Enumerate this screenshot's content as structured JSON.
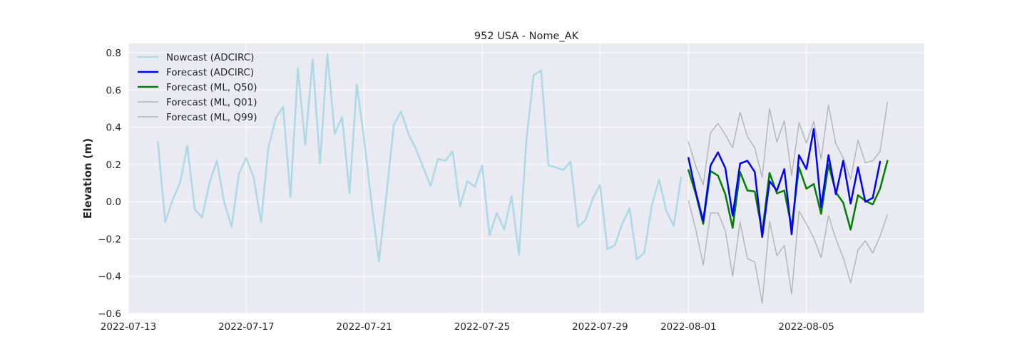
{
  "chart_data": {
    "type": "line",
    "title": "952 USA - Nome_AK",
    "xlabel": "",
    "ylabel": "Elevation (m)",
    "ylim": [
      -0.6,
      0.85
    ],
    "xlim": [
      "2022-07-13 00:00",
      "2022-08-09 00:00"
    ],
    "yticks": [
      "0.8",
      "0.6",
      "0.4",
      "0.2",
      "0.0",
      "−0.2",
      "−0.4",
      "−0.6"
    ],
    "xticks": [
      "2022-07-13",
      "2022-07-17",
      "2022-07-21",
      "2022-07-25",
      "2022-07-29",
      "2022-08-01",
      "2022-08-05"
    ],
    "grid": true,
    "legend_position": "top-left",
    "colors": {
      "background": "#eaeaf2",
      "grid": "#ffffff",
      "nowcast": "#add8e6",
      "forecast_adcirc": "#0000ff",
      "forecast_q50": "#008000",
      "forecast_q01": "#b3b3b3",
      "forecast_q99": "#b3b3b3"
    },
    "series": [
      {
        "name": "Nowcast (ADCIRC)",
        "key": "nowcast",
        "width": 2.5,
        "points": [
          [
            "2022-07-14 00:00",
            0.32
          ],
          [
            "2022-07-14 06:00",
            -0.11
          ],
          [
            "2022-07-14 12:00",
            0.01
          ],
          [
            "2022-07-14 18:00",
            0.1
          ],
          [
            "2022-07-15 00:00",
            0.3
          ],
          [
            "2022-07-15 06:00",
            -0.04
          ],
          [
            "2022-07-15 12:00",
            -0.085
          ],
          [
            "2022-07-15 18:00",
            0.1
          ],
          [
            "2022-07-16 00:00",
            0.22
          ],
          [
            "2022-07-16 06:00",
            0.0
          ],
          [
            "2022-07-16 12:00",
            -0.135
          ],
          [
            "2022-07-16 18:00",
            0.15
          ],
          [
            "2022-07-17 00:00",
            0.235
          ],
          [
            "2022-07-17 06:00",
            0.13
          ],
          [
            "2022-07-17 12:00",
            -0.11
          ],
          [
            "2022-07-17 18:00",
            0.29
          ],
          [
            "2022-07-18 00:00",
            0.45
          ],
          [
            "2022-07-18 06:00",
            0.51
          ],
          [
            "2022-07-18 12:00",
            0.025
          ],
          [
            "2022-07-18 18:00",
            0.715
          ],
          [
            "2022-07-19 00:00",
            0.305
          ],
          [
            "2022-07-19 06:00",
            0.765
          ],
          [
            "2022-07-19 12:00",
            0.205
          ],
          [
            "2022-07-19 18:00",
            0.795
          ],
          [
            "2022-07-20 00:00",
            0.365
          ],
          [
            "2022-07-20 06:00",
            0.455
          ],
          [
            "2022-07-20 12:00",
            0.045
          ],
          [
            "2022-07-20 18:00",
            0.63
          ],
          [
            "2022-07-21 00:00",
            0.33
          ],
          [
            "2022-07-21 06:00",
            -0.01
          ],
          [
            "2022-07-21 12:00",
            -0.32
          ],
          [
            "2022-07-21 18:00",
            0.03
          ],
          [
            "2022-07-22 00:00",
            0.41
          ],
          [
            "2022-07-22 06:00",
            0.485
          ],
          [
            "2022-07-22 12:00",
            0.365
          ],
          [
            "2022-07-22 18:00",
            0.285
          ],
          [
            "2022-07-23 00:00",
            0.185
          ],
          [
            "2022-07-23 06:00",
            0.085
          ],
          [
            "2022-07-23 12:00",
            0.23
          ],
          [
            "2022-07-23 18:00",
            0.22
          ],
          [
            "2022-07-24 00:00",
            0.27
          ],
          [
            "2022-07-24 06:00",
            -0.025
          ],
          [
            "2022-07-24 12:00",
            0.11
          ],
          [
            "2022-07-24 18:00",
            0.08
          ],
          [
            "2022-07-25 00:00",
            0.195
          ],
          [
            "2022-07-25 06:00",
            -0.18
          ],
          [
            "2022-07-25 12:00",
            -0.06
          ],
          [
            "2022-07-25 18:00",
            -0.15
          ],
          [
            "2022-07-26 00:00",
            0.03
          ],
          [
            "2022-07-26 06:00",
            -0.285
          ],
          [
            "2022-07-26 12:00",
            0.33
          ],
          [
            "2022-07-26 18:00",
            0.68
          ],
          [
            "2022-07-27 00:00",
            0.705
          ],
          [
            "2022-07-27 06:00",
            0.195
          ],
          [
            "2022-07-27 12:00",
            0.185
          ],
          [
            "2022-07-27 18:00",
            0.17
          ],
          [
            "2022-07-28 00:00",
            0.215
          ],
          [
            "2022-07-28 06:00",
            -0.135
          ],
          [
            "2022-07-28 12:00",
            -0.1
          ],
          [
            "2022-07-28 18:00",
            0.015
          ],
          [
            "2022-07-29 00:00",
            0.09
          ],
          [
            "2022-07-29 06:00",
            -0.255
          ],
          [
            "2022-07-29 12:00",
            -0.235
          ],
          [
            "2022-07-29 18:00",
            -0.12
          ],
          [
            "2022-07-30 00:00",
            -0.035
          ],
          [
            "2022-07-30 06:00",
            -0.31
          ],
          [
            "2022-07-30 12:00",
            -0.275
          ],
          [
            "2022-07-30 18:00",
            -0.025
          ],
          [
            "2022-07-31 00:00",
            0.12
          ],
          [
            "2022-07-31 06:00",
            -0.05
          ],
          [
            "2022-07-31 12:00",
            -0.13
          ],
          [
            "2022-07-31 18:00",
            0.13
          ]
        ]
      },
      {
        "name": "Forecast (ADCIRC)",
        "key": "forecast_adcirc",
        "width": 2.5,
        "points": [
          [
            "2022-08-01 00:00",
            0.235
          ],
          [
            "2022-08-01 06:00",
            0.05
          ],
          [
            "2022-08-01 12:00",
            -0.105
          ],
          [
            "2022-08-01 18:00",
            0.195
          ],
          [
            "2022-08-02 00:00",
            0.265
          ],
          [
            "2022-08-02 06:00",
            0.18
          ],
          [
            "2022-08-02 12:00",
            -0.075
          ],
          [
            "2022-08-02 18:00",
            0.205
          ],
          [
            "2022-08-03 00:00",
            0.22
          ],
          [
            "2022-08-03 06:00",
            0.16
          ],
          [
            "2022-08-03 12:00",
            -0.19
          ],
          [
            "2022-08-03 18:00",
            0.11
          ],
          [
            "2022-08-04 00:00",
            0.06
          ],
          [
            "2022-08-04 06:00",
            0.175
          ],
          [
            "2022-08-04 12:00",
            -0.175
          ],
          [
            "2022-08-04 18:00",
            0.25
          ],
          [
            "2022-08-05 00:00",
            0.175
          ],
          [
            "2022-08-05 06:00",
            0.39
          ],
          [
            "2022-08-05 12:00",
            -0.03
          ],
          [
            "2022-08-05 18:00",
            0.25
          ],
          [
            "2022-08-06 00:00",
            0.04
          ],
          [
            "2022-08-06 06:00",
            0.22
          ],
          [
            "2022-08-06 12:00",
            -0.01
          ],
          [
            "2022-08-06 18:00",
            0.185
          ],
          [
            "2022-08-07 00:00",
            0.0
          ],
          [
            "2022-08-07 06:00",
            0.02
          ],
          [
            "2022-08-07 12:00",
            0.215
          ]
        ]
      },
      {
        "name": "Forecast (ML, Q50)",
        "key": "forecast_q50",
        "width": 2.5,
        "points": [
          [
            "2022-08-01 00:00",
            0.17
          ],
          [
            "2022-08-01 06:00",
            0.04
          ],
          [
            "2022-08-01 12:00",
            -0.12
          ],
          [
            "2022-08-01 18:00",
            0.165
          ],
          [
            "2022-08-02 00:00",
            0.14
          ],
          [
            "2022-08-02 06:00",
            0.04
          ],
          [
            "2022-08-02 12:00",
            -0.14
          ],
          [
            "2022-08-02 18:00",
            0.16
          ],
          [
            "2022-08-03 00:00",
            0.06
          ],
          [
            "2022-08-03 06:00",
            0.055
          ],
          [
            "2022-08-03 12:00",
            -0.165
          ],
          [
            "2022-08-03 18:00",
            0.155
          ],
          [
            "2022-08-04 00:00",
            0.045
          ],
          [
            "2022-08-04 06:00",
            0.06
          ],
          [
            "2022-08-04 12:00",
            -0.14
          ],
          [
            "2022-08-04 18:00",
            0.185
          ],
          [
            "2022-08-05 00:00",
            0.07
          ],
          [
            "2022-08-05 06:00",
            0.095
          ],
          [
            "2022-08-05 12:00",
            -0.065
          ],
          [
            "2022-08-05 18:00",
            0.2
          ],
          [
            "2022-08-06 00:00",
            0.05
          ],
          [
            "2022-08-06 06:00",
            -0.005
          ],
          [
            "2022-08-06 12:00",
            -0.15
          ],
          [
            "2022-08-06 18:00",
            0.035
          ],
          [
            "2022-08-07 00:00",
            0.005
          ],
          [
            "2022-08-07 06:00",
            -0.015
          ],
          [
            "2022-08-07 12:00",
            0.07
          ],
          [
            "2022-08-07 18:00",
            0.22
          ]
        ]
      },
      {
        "name": "Forecast (ML, Q01)",
        "key": "forecast_q01",
        "width": 1.4,
        "points": [
          [
            "2022-08-01 00:00",
            0.005
          ],
          [
            "2022-08-01 06:00",
            -0.15
          ],
          [
            "2022-08-01 12:00",
            -0.34
          ],
          [
            "2022-08-01 18:00",
            -0.06
          ],
          [
            "2022-08-02 00:00",
            -0.06
          ],
          [
            "2022-08-02 06:00",
            -0.155
          ],
          [
            "2022-08-02 12:00",
            -0.4
          ],
          [
            "2022-08-02 18:00",
            -0.11
          ],
          [
            "2022-08-03 00:00",
            -0.305
          ],
          [
            "2022-08-03 06:00",
            -0.325
          ],
          [
            "2022-08-03 12:00",
            -0.545
          ],
          [
            "2022-08-03 18:00",
            -0.105
          ],
          [
            "2022-08-04 00:00",
            -0.29
          ],
          [
            "2022-08-04 06:00",
            -0.235
          ],
          [
            "2022-08-04 12:00",
            -0.495
          ],
          [
            "2022-08-04 18:00",
            -0.05
          ],
          [
            "2022-08-05 00:00",
            -0.12
          ],
          [
            "2022-08-05 06:00",
            -0.195
          ],
          [
            "2022-08-05 12:00",
            -0.3
          ],
          [
            "2022-08-05 18:00",
            -0.075
          ],
          [
            "2022-08-06 00:00",
            -0.2
          ],
          [
            "2022-08-06 06:00",
            -0.3
          ],
          [
            "2022-08-06 12:00",
            -0.435
          ],
          [
            "2022-08-06 18:00",
            -0.26
          ],
          [
            "2022-08-07 00:00",
            -0.21
          ],
          [
            "2022-08-07 06:00",
            -0.275
          ],
          [
            "2022-08-07 12:00",
            -0.185
          ],
          [
            "2022-08-07 18:00",
            -0.07
          ]
        ]
      },
      {
        "name": "Forecast (ML, Q99)",
        "key": "forecast_q99",
        "width": 1.4,
        "points": [
          [
            "2022-08-01 00:00",
            0.32
          ],
          [
            "2022-08-01 06:00",
            0.19
          ],
          [
            "2022-08-01 12:00",
            0.09
          ],
          [
            "2022-08-01 18:00",
            0.37
          ],
          [
            "2022-08-02 00:00",
            0.42
          ],
          [
            "2022-08-02 06:00",
            0.36
          ],
          [
            "2022-08-02 12:00",
            0.29
          ],
          [
            "2022-08-02 18:00",
            0.48
          ],
          [
            "2022-08-03 00:00",
            0.35
          ],
          [
            "2022-08-03 06:00",
            0.29
          ],
          [
            "2022-08-03 12:00",
            0.13
          ],
          [
            "2022-08-03 18:00",
            0.5
          ],
          [
            "2022-08-04 00:00",
            0.32
          ],
          [
            "2022-08-04 06:00",
            0.435
          ],
          [
            "2022-08-04 12:00",
            0.14
          ],
          [
            "2022-08-04 18:00",
            0.425
          ],
          [
            "2022-08-05 00:00",
            0.315
          ],
          [
            "2022-08-05 06:00",
            0.43
          ],
          [
            "2022-08-05 12:00",
            0.23
          ],
          [
            "2022-08-05 18:00",
            0.52
          ],
          [
            "2022-08-06 00:00",
            0.31
          ],
          [
            "2022-08-06 06:00",
            0.235
          ],
          [
            "2022-08-06 12:00",
            0.12
          ],
          [
            "2022-08-06 18:00",
            0.33
          ],
          [
            "2022-08-07 00:00",
            0.21
          ],
          [
            "2022-08-07 06:00",
            0.22
          ],
          [
            "2022-08-07 12:00",
            0.27
          ],
          [
            "2022-08-07 18:00",
            0.535
          ]
        ]
      }
    ]
  }
}
